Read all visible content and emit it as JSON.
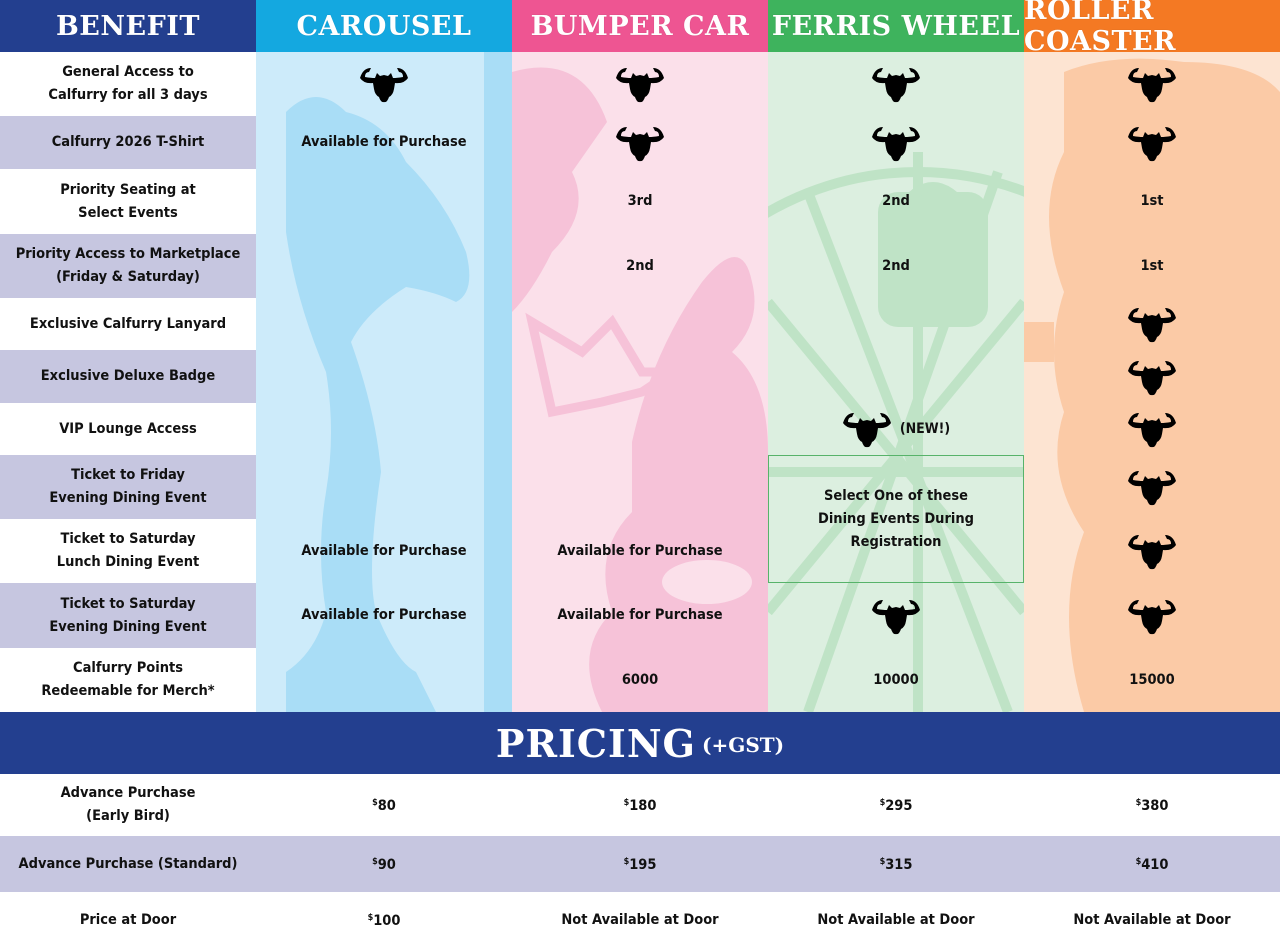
{
  "header": {
    "benefit": "BENEFIT",
    "tiers": [
      "CAROUSEL",
      "BUMPER CAR",
      "FERRIS WHEEL",
      "ROLLER COASTER"
    ]
  },
  "colors": {
    "navy": "#233f8f",
    "carousel": "#14a8e0",
    "bumper_car": "#ee5592",
    "ferris_wheel": "#3eb35d",
    "roller_coaster": "#f47923",
    "stripe": "#c6c6e0"
  },
  "icons": {
    "included": "bull-head-icon"
  },
  "benefits": [
    {
      "label": [
        "General Access to",
        "Calfurry for all 3 days"
      ],
      "values": [
        "icon",
        "icon",
        "icon",
        "icon"
      ]
    },
    {
      "label": [
        "Calfurry 2026 T-Shirt"
      ],
      "values": [
        "Available for Purchase",
        "icon",
        "icon",
        "icon"
      ]
    },
    {
      "label": [
        "Priority Seating at",
        "Select Events"
      ],
      "values": [
        "",
        "3rd",
        "2nd",
        "1st"
      ]
    },
    {
      "label": [
        "Priority Access to Marketplace",
        "(Friday & Saturday)"
      ],
      "values": [
        "",
        "2nd",
        "2nd",
        "1st"
      ]
    },
    {
      "label": [
        "Exclusive Calfurry Lanyard"
      ],
      "values": [
        "",
        "",
        "",
        "icon"
      ]
    },
    {
      "label": [
        "Exclusive Deluxe Badge"
      ],
      "values": [
        "",
        "",
        "",
        "icon"
      ]
    },
    {
      "label": [
        "VIP Lounge Access"
      ],
      "values": [
        "",
        "",
        "icon+(NEW!)",
        "icon"
      ]
    },
    {
      "label": [
        "Ticket to Friday",
        "Evening Dining Event"
      ],
      "values": [
        "",
        "",
        "",
        "icon"
      ]
    },
    {
      "label": [
        "Ticket to Saturday",
        "Lunch Dining Event"
      ],
      "values": [
        "Available for Purchase",
        "Available for Purchase",
        "",
        "icon"
      ]
    },
    {
      "label": [
        "Ticket to Saturday",
        "Evening Dining Event"
      ],
      "values": [
        "Available for Purchase",
        "Available for Purchase",
        "icon",
        "icon"
      ]
    },
    {
      "label": [
        "Calfurry Points",
        "Redeemable for Merch*"
      ],
      "values": [
        "",
        "6000",
        "10000",
        "15000"
      ]
    }
  ],
  "vip_new_tag": "(NEW!)",
  "ferris_dining_note": [
    "Select One of these",
    "Dining Events During Registration"
  ],
  "pricing": {
    "title": "PRICING",
    "subtitle": "(+GST)",
    "rows": [
      {
        "label": [
          "Advance Purchase",
          "(Early Bird)"
        ],
        "values": [
          "80",
          "180",
          "295",
          "380"
        ]
      },
      {
        "label": [
          "Advance Purchase (Standard)"
        ],
        "values": [
          "90",
          "195",
          "315",
          "410"
        ]
      },
      {
        "label": [
          "Price at Door"
        ],
        "values": [
          "100",
          "Not Available at Door",
          "Not Available at Door",
          "Not Available at Door"
        ]
      }
    ]
  }
}
